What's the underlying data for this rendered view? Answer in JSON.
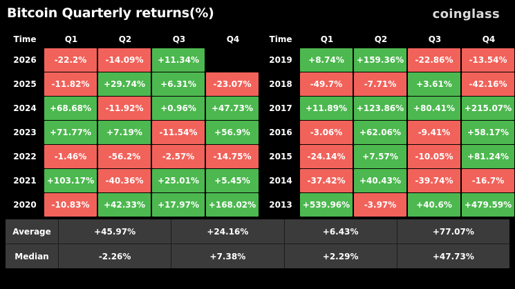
{
  "header": {
    "title": "Bitcoin Quarterly returns(%)",
    "brand": "coinglass"
  },
  "colors": {
    "positive": "#4cb84f",
    "negative": "#f1625a",
    "empty": "#000000",
    "summary_bg": "#3b3b3b"
  },
  "chart_data": {
    "type": "table",
    "title": "Bitcoin Quarterly returns(%)",
    "columns": [
      "Time",
      "Q1",
      "Q2",
      "Q3",
      "Q4"
    ],
    "left_table": [
      {
        "year": "2026",
        "values": [
          "-22.2%",
          "-14.09%",
          "+11.34%",
          ""
        ]
      },
      {
        "year": "2025",
        "values": [
          "-11.82%",
          "+29.74%",
          "+6.31%",
          "-23.07%"
        ]
      },
      {
        "year": "2024",
        "values": [
          "+68.68%",
          "-11.92%",
          "+0.96%",
          "+47.73%"
        ]
      },
      {
        "year": "2023",
        "values": [
          "+71.77%",
          "+7.19%",
          "-11.54%",
          "+56.9%"
        ]
      },
      {
        "year": "2022",
        "values": [
          "-1.46%",
          "-56.2%",
          "-2.57%",
          "-14.75%"
        ]
      },
      {
        "year": "2021",
        "values": [
          "+103.17%",
          "-40.36%",
          "+25.01%",
          "+5.45%"
        ]
      },
      {
        "year": "2020",
        "values": [
          "-10.83%",
          "+42.33%",
          "+17.97%",
          "+168.02%"
        ]
      }
    ],
    "right_table": [
      {
        "year": "2019",
        "values": [
          "+8.74%",
          "+159.36%",
          "-22.86%",
          "-13.54%"
        ]
      },
      {
        "year": "2018",
        "values": [
          "-49.7%",
          "-7.71%",
          "+3.61%",
          "-42.16%"
        ]
      },
      {
        "year": "2017",
        "values": [
          "+11.89%",
          "+123.86%",
          "+80.41%",
          "+215.07%"
        ]
      },
      {
        "year": "2016",
        "values": [
          "-3.06%",
          "+62.06%",
          "-9.41%",
          "+58.17%"
        ]
      },
      {
        "year": "2015",
        "values": [
          "-24.14%",
          "+7.57%",
          "-10.05%",
          "+81.24%"
        ]
      },
      {
        "year": "2014",
        "values": [
          "-37.42%",
          "+40.43%",
          "-39.74%",
          "-16.7%"
        ]
      },
      {
        "year": "2013",
        "values": [
          "+539.96%",
          "-3.97%",
          "+40.6%",
          "+479.59%"
        ]
      }
    ],
    "summary": [
      {
        "label": "Average",
        "values": [
          "+45.97%",
          "+24.16%",
          "+6.43%",
          "+77.07%"
        ]
      },
      {
        "label": "Median",
        "values": [
          "-2.26%",
          "+7.38%",
          "+2.29%",
          "+47.73%"
        ]
      }
    ]
  }
}
